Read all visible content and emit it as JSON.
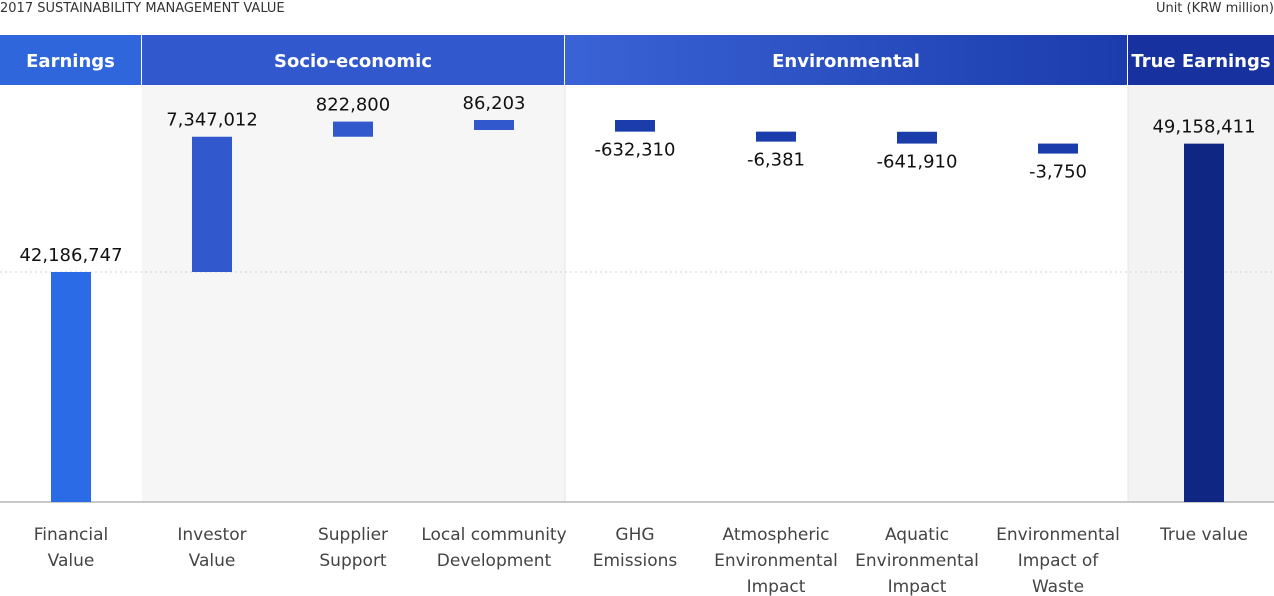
{
  "title": "2017 SUSTAINABILITY MANAGEMENT VALUE",
  "unit": "Unit (KRW million)",
  "groups": [
    {
      "label": "Earnings",
      "color": "#2f66dc"
    },
    {
      "label": "Socio-economic",
      "color": "#2e5bcf"
    },
    {
      "label": "Environmental",
      "color": "#1a3eb2"
    },
    {
      "label": "True Earnings",
      "color": "#18309e"
    }
  ],
  "chart_data": {
    "type": "bar",
    "subtype": "waterfall",
    "title": "2017 SUSTAINABILITY MANAGEMENT VALUE",
    "unit": "Unit (KRW million)",
    "categories": [
      "Financial Value",
      "Investor Value",
      "Supplier Support",
      "Local community Development",
      "GHG Emissions",
      "Atmospheric Environmental Impact",
      "Aquatic Environmental Impact",
      "Environmental Impact of Waste",
      "True value"
    ],
    "category_lines": [
      [
        "Financial",
        "Value"
      ],
      [
        "Investor",
        "Value"
      ],
      [
        "Supplier",
        "Support"
      ],
      [
        "Local community",
        "Development"
      ],
      [
        "GHG",
        "Emissions"
      ],
      [
        "Atmospheric",
        "Environmental",
        "Impact"
      ],
      [
        "Aquatic",
        "Environmental",
        "Impact"
      ],
      [
        "Environmental",
        "Impact of",
        "Waste"
      ],
      [
        "True value"
      ]
    ],
    "values": [
      42186747,
      7347012,
      822800,
      86203,
      -632310,
      -6381,
      -641910,
      -3750,
      49158411
    ],
    "value_labels": [
      "42,186,747",
      "7,347,012",
      "822,800",
      "86,203",
      "-632,310",
      "-6,381",
      "-641,910",
      "-3,750",
      "49,158,411"
    ],
    "kinds": [
      "total",
      "delta",
      "delta",
      "delta",
      "delta",
      "delta",
      "delta",
      "delta",
      "total"
    ],
    "groups": [
      "Earnings",
      "Socio-economic",
      "Socio-economic",
      "Socio-economic",
      "Environmental",
      "Environmental",
      "Environmental",
      "Environmental",
      "True Earnings"
    ],
    "colors": [
      "#2c6be6",
      "#3158cd",
      "#3158cd",
      "#3158cd",
      "#1b3cab",
      "#1b3cab",
      "#1b3cab",
      "#1b3cab",
      "#0f2782"
    ],
    "legend": "none"
  }
}
